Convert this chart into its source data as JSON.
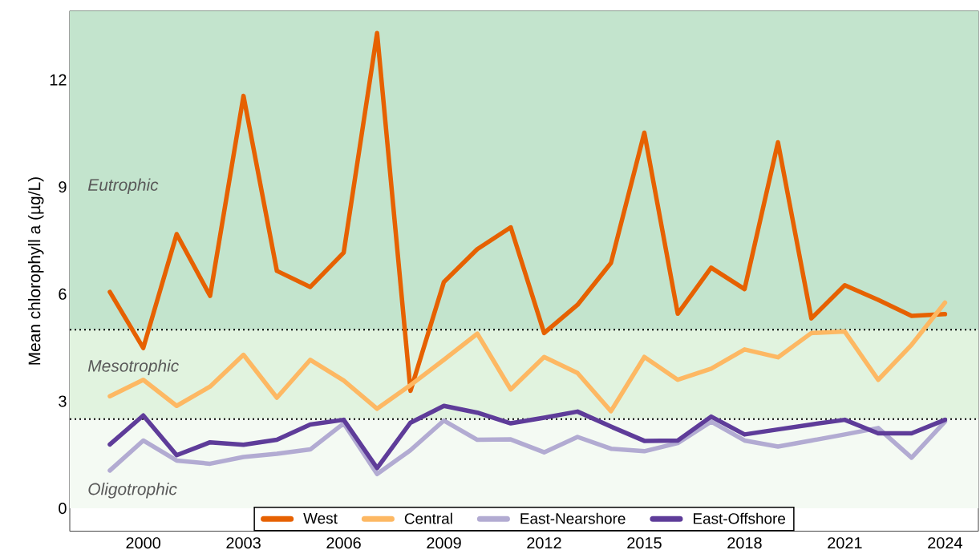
{
  "chart_data": {
    "type": "line",
    "ylabel": "Mean chlorophyll a (µg/L)",
    "x": [
      1999,
      2000,
      2001,
      2002,
      2003,
      2004,
      2005,
      2006,
      2007,
      2008,
      2009,
      2010,
      2011,
      2012,
      2013,
      2014,
      2015,
      2016,
      2017,
      2018,
      2019,
      2020,
      2021,
      2022,
      2023,
      2024
    ],
    "series": [
      {
        "name": "West",
        "color": "#e66101",
        "values": [
          6.06,
          4.49,
          7.68,
          5.95,
          11.55,
          6.65,
          6.2,
          7.16,
          13.31,
          3.29,
          6.34,
          7.26,
          7.87,
          4.91,
          5.7,
          6.87,
          10.52,
          5.45,
          6.74,
          6.14,
          10.25,
          5.32,
          6.25,
          5.84,
          5.39,
          5.44
        ]
      },
      {
        "name": "Central",
        "color": "#fdb863",
        "values": [
          3.14,
          3.6,
          2.87,
          3.41,
          4.3,
          3.1,
          4.16,
          3.58,
          2.79,
          3.45,
          4.16,
          4.89,
          3.33,
          4.24,
          3.79,
          2.72,
          4.24,
          3.6,
          3.91,
          4.45,
          4.23,
          4.91,
          4.95,
          3.6,
          4.58,
          5.76
        ]
      },
      {
        "name": "East-Nearshore",
        "color": "#b2abd2",
        "values": [
          1.06,
          1.9,
          1.34,
          1.25,
          1.44,
          1.53,
          1.65,
          2.38,
          0.96,
          1.63,
          2.46,
          1.92,
          1.93,
          1.57,
          2.0,
          1.67,
          1.6,
          1.83,
          2.43,
          1.9,
          1.73,
          1.9,
          2.07,
          2.25,
          1.42,
          2.43
        ]
      },
      {
        "name": "East-Offshore",
        "color": "#5e3c99",
        "values": [
          1.79,
          2.6,
          1.49,
          1.85,
          1.78,
          1.92,
          2.35,
          2.48,
          1.13,
          2.4,
          2.87,
          2.68,
          2.38,
          2.54,
          2.71,
          2.29,
          1.89,
          1.9,
          2.57,
          2.07,
          2.21,
          2.35,
          2.48,
          2.1,
          2.1,
          2.48
        ]
      }
    ],
    "xlim": [
      1997.8,
      2025
    ],
    "ylim": [
      -0.64,
      13.93
    ],
    "xticks": [
      2000,
      2003,
      2006,
      2009,
      2012,
      2015,
      2018,
      2021,
      2024
    ],
    "yticks": [
      0,
      3,
      6,
      9,
      12
    ],
    "bands": [
      {
        "axis": "y",
        "from": 5,
        "to": 13.93,
        "label": "Eutrophic",
        "color": "#c3e4cd"
      },
      {
        "axis": "y",
        "from": 2.5,
        "to": 5,
        "label": "Mesotrophic",
        "color": "#e1f3df"
      },
      {
        "axis": "y",
        "from": 0,
        "to": 2.5,
        "label": "Oligotrophic",
        "color": "#f4faf3"
      }
    ],
    "ref_lines": [
      {
        "axis": "y",
        "value": 5,
        "color": "#000000",
        "line_style": "dotted"
      },
      {
        "axis": "y",
        "value": 2.5,
        "color": "#000000",
        "line_style": "dotted"
      }
    ],
    "grid": false,
    "legend": "bottom"
  }
}
